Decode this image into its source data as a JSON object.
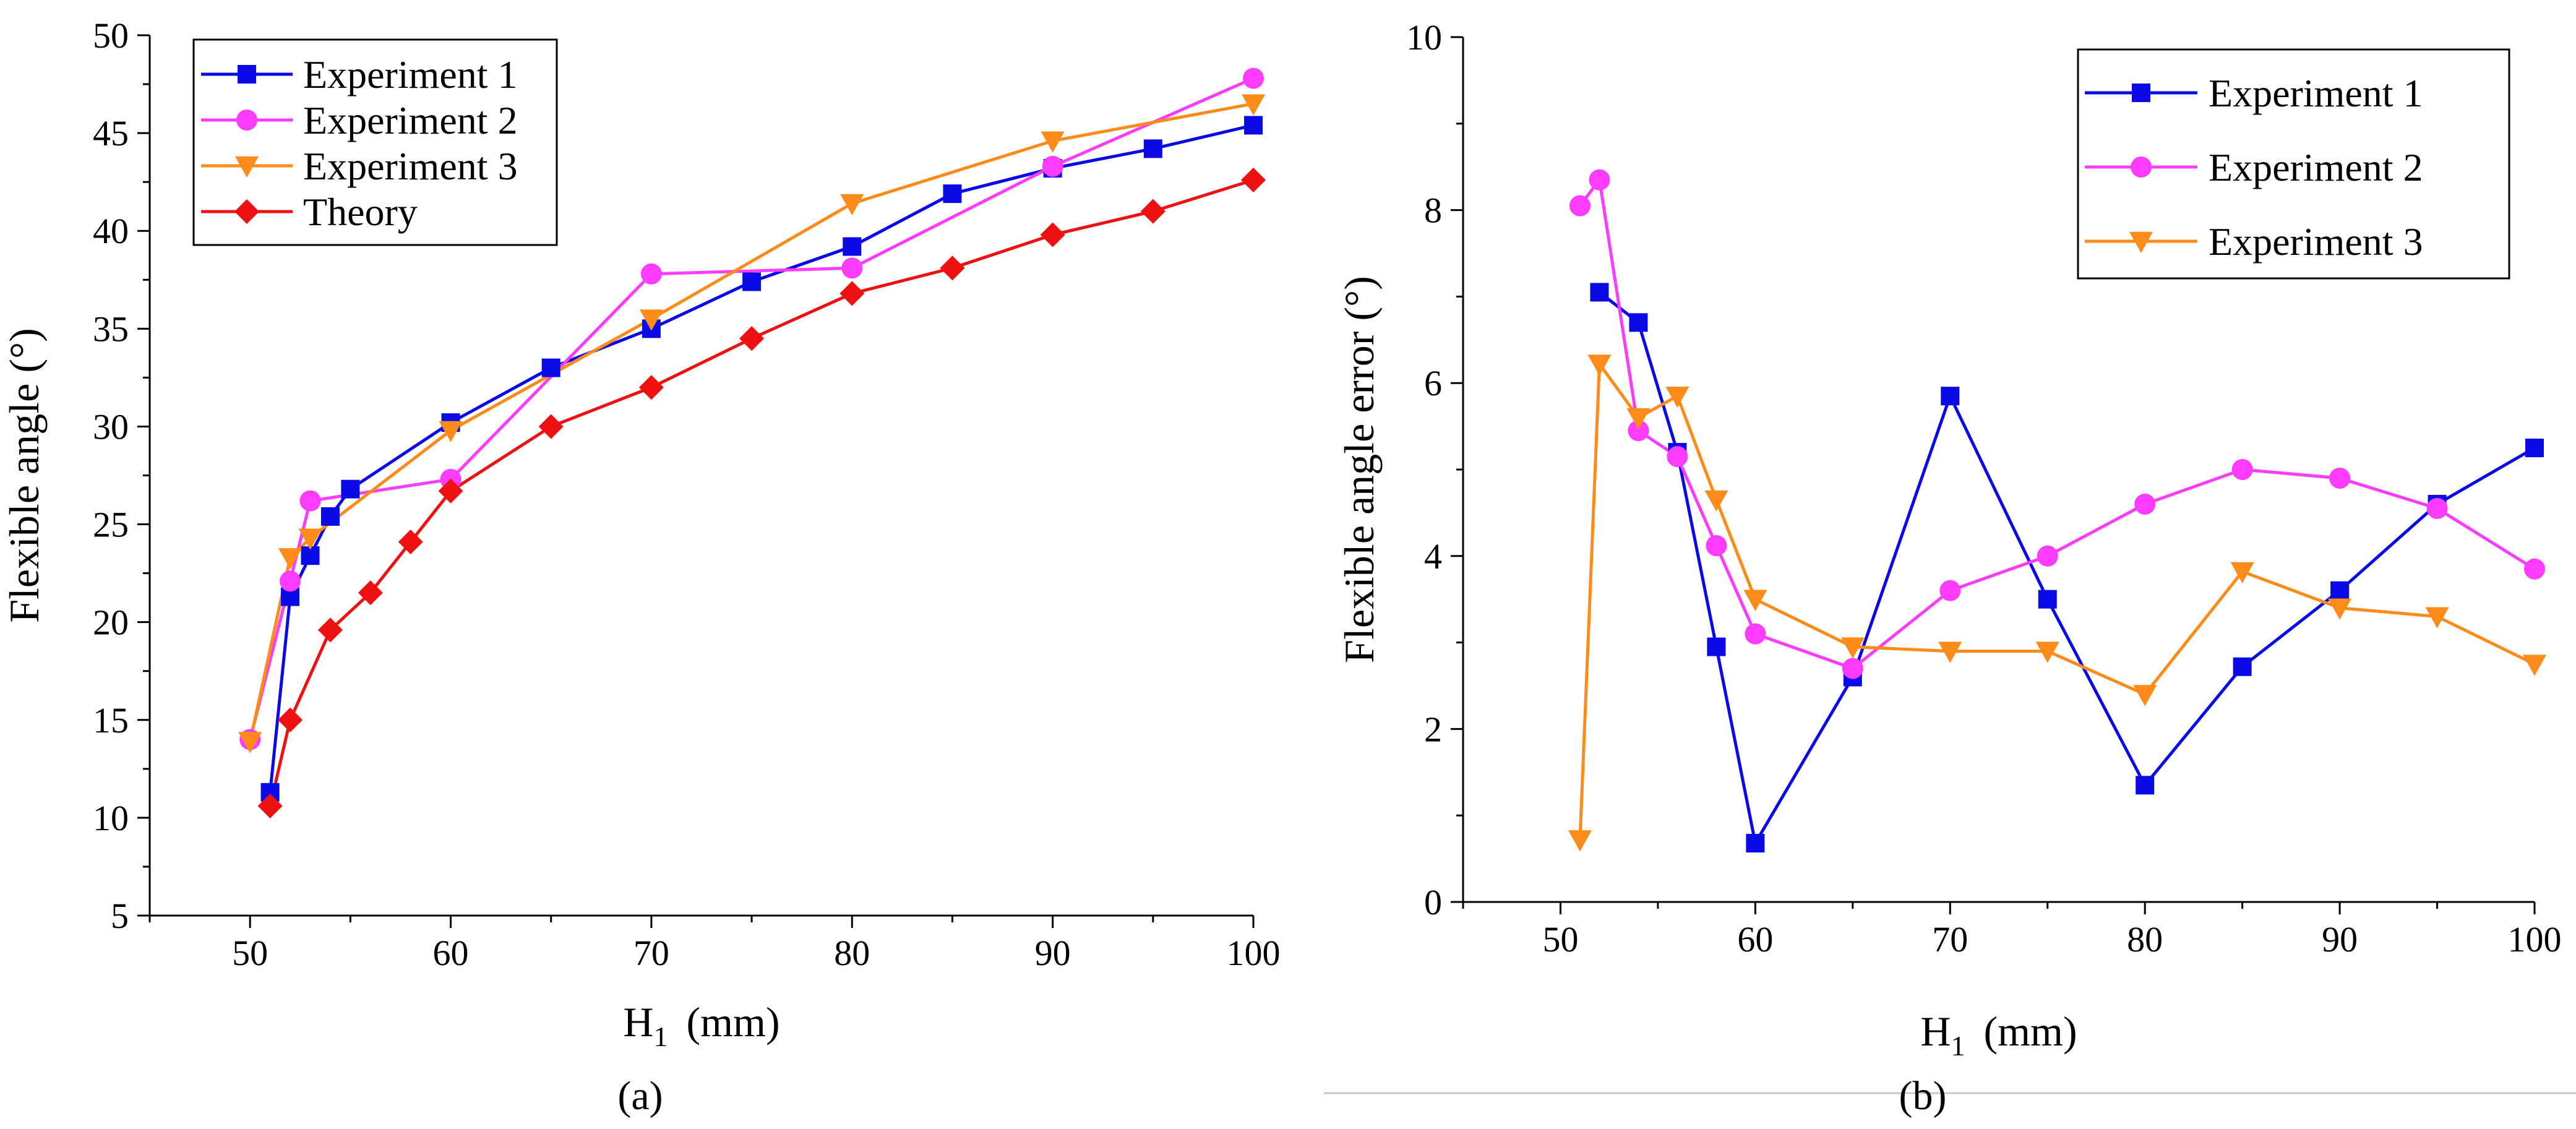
{
  "chart_data": [
    {
      "type": "line",
      "panel_label": "(a)",
      "xlabel": "H1 (mm)",
      "xlabel_main": "H",
      "xlabel_sub": "1",
      "xlabel_unit": "(mm)",
      "ylabel": "Flexible angle (°)",
      "xlim": [
        45,
        100
      ],
      "ylim": [
        5,
        50
      ],
      "xticks": [
        50,
        60,
        70,
        80,
        90,
        100
      ],
      "yticks": [
        5,
        10,
        15,
        20,
        25,
        30,
        35,
        40,
        45,
        50
      ],
      "grid": false,
      "legend_position": "top-left",
      "series": [
        {
          "name": "Experiment 1",
          "marker": "square",
          "color": "#0a0ae6",
          "x": [
            51,
            52,
            53,
            54,
            55,
            60,
            65,
            70,
            75,
            80,
            85,
            90,
            95,
            100
          ],
          "y": [
            11.3,
            21.3,
            23.4,
            25.4,
            26.8,
            30.2,
            33.0,
            35.0,
            37.4,
            39.2,
            41.9,
            43.2,
            44.2,
            45.4
          ]
        },
        {
          "name": "Experiment 2",
          "marker": "circle",
          "color": "#ff3cff",
          "x": [
            50,
            52,
            53,
            60,
            70,
            80,
            90,
            100
          ],
          "y": [
            14.0,
            22.1,
            26.2,
            27.3,
            37.8,
            38.1,
            43.3,
            47.8
          ]
        },
        {
          "name": "Experiment 3",
          "marker": "triangle-down",
          "color": "#ff8c1a",
          "x": [
            50,
            52,
            53,
            60,
            70,
            80,
            90,
            100
          ],
          "y": [
            13.9,
            23.3,
            24.3,
            29.8,
            35.5,
            41.4,
            44.6,
            46.5
          ]
        },
        {
          "name": "Theory",
          "marker": "diamond",
          "color": "#ee1111",
          "x": [
            51,
            52,
            54,
            56,
            58,
            60,
            65,
            70,
            75,
            80,
            85,
            90,
            95,
            100
          ],
          "y": [
            10.6,
            15.0,
            19.6,
            21.5,
            24.1,
            26.7,
            30.0,
            32.0,
            34.5,
            36.8,
            38.1,
            39.8,
            41.0,
            42.6
          ]
        }
      ]
    },
    {
      "type": "line",
      "panel_label": "(b)",
      "xlabel": "H1 (mm)",
      "xlabel_main": "H",
      "xlabel_sub": "1",
      "xlabel_unit": "(mm)",
      "ylabel": "Flexible angle error (°)",
      "xlim": [
        45,
        100
      ],
      "ylim": [
        0,
        10
      ],
      "xticks": [
        50,
        60,
        70,
        80,
        90,
        100
      ],
      "yticks": [
        0,
        2,
        4,
        6,
        8,
        10
      ],
      "grid": false,
      "legend_position": "top-right",
      "series": [
        {
          "name": "Experiment 1",
          "marker": "square",
          "color": "#0a0ae6",
          "x": [
            52,
            54,
            56,
            58,
            60,
            65,
            70,
            75,
            80,
            85,
            90,
            95,
            100
          ],
          "y": [
            7.05,
            6.7,
            5.2,
            2.95,
            0.68,
            2.6,
            5.85,
            3.5,
            1.35,
            2.72,
            3.6,
            4.6,
            5.25
          ]
        },
        {
          "name": "Experiment 2",
          "marker": "circle",
          "color": "#ff3cff",
          "x": [
            51,
            52,
            54,
            56,
            58,
            60,
            65,
            70,
            75,
            80,
            85,
            90,
            95,
            100
          ],
          "y": [
            8.05,
            8.35,
            5.45,
            5.15,
            4.12,
            3.1,
            2.7,
            3.6,
            4.0,
            4.6,
            5.0,
            4.9,
            4.55,
            3.85
          ]
        },
        {
          "name": "Experiment 3",
          "marker": "triangle-down",
          "color": "#ff8c1a",
          "x": [
            51,
            52,
            54,
            56,
            58,
            60,
            65,
            70,
            75,
            80,
            85,
            90,
            95,
            100
          ],
          "y": [
            0.72,
            6.22,
            5.6,
            5.85,
            4.65,
            3.5,
            2.95,
            2.9,
            2.9,
            2.4,
            3.82,
            3.4,
            3.3,
            2.75
          ]
        }
      ]
    }
  ]
}
